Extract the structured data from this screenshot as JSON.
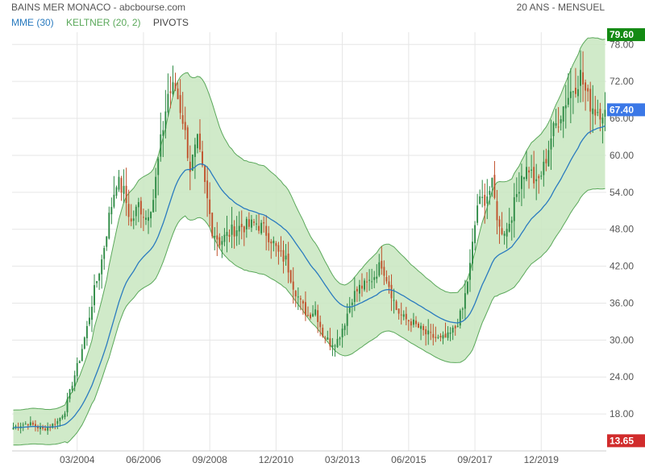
{
  "header": {
    "title": "BAINS MER MONACO - abcbourse.com",
    "period": "20 ANS - MENSUEL"
  },
  "legend": {
    "items": [
      {
        "label": "MME (30)",
        "color": "#2a7bbf"
      },
      {
        "label": "KELTNER (20, 2)",
        "color": "#5aa85a"
      },
      {
        "label": "PIVOTS",
        "color": "#444444"
      }
    ]
  },
  "price_badges": {
    "high": {
      "label": "79.60",
      "value": 79.6,
      "color": "#138a13"
    },
    "last": {
      "label": "67.40",
      "value": 67.4,
      "color": "#3b78e7"
    },
    "low": {
      "label": "13.65",
      "value": 13.65,
      "color": "#d12c2c"
    }
  },
  "colors": {
    "up": "#2e8b45",
    "down": "#c0512b",
    "band_fill": "#c8e6c0",
    "band_line": "#5aa85a",
    "ema": "#2a7bbf",
    "grid": "#e6e6e6",
    "axis_text": "#555555"
  },
  "chart_data": {
    "type": "candlestick",
    "title": "BAINS MER MONACO - abcbourse.com",
    "period": "20 ANS - MENSUEL",
    "interval": "monthly",
    "ylim": [
      12,
      80
    ],
    "y_ticks": [
      {
        "value": 78,
        "label": "78.00"
      },
      {
        "value": 72,
        "label": "72.00"
      },
      {
        "value": 66,
        "label": "66.00"
      },
      {
        "value": 60,
        "label": "60.00"
      },
      {
        "value": 54,
        "label": "54.00"
      },
      {
        "value": 48,
        "label": "48.00"
      },
      {
        "value": 42,
        "label": "42.00"
      },
      {
        "value": 36,
        "label": "36.00"
      },
      {
        "value": 30,
        "label": "30.00"
      },
      {
        "value": 24,
        "label": "24.00"
      },
      {
        "value": 18,
        "label": "18.00"
      }
    ],
    "x_ticks": [
      "03/2004",
      "06/2006",
      "09/2008",
      "12/2010",
      "03/2013",
      "06/2015",
      "09/2017",
      "12/2019"
    ],
    "x_range": [
      "01/2002",
      "03/2022"
    ],
    "grid": true,
    "overlays": [
      "MME (30)",
      "KELTNER (20, 2)",
      "PIVOTS"
    ],
    "closes": [
      [
        "2002-01",
        15.8
      ],
      [
        "2002-04",
        16.2
      ],
      [
        "2002-07",
        16.5
      ],
      [
        "2002-10",
        16.0
      ],
      [
        "2003-01",
        15.5
      ],
      [
        "2003-04",
        16.0
      ],
      [
        "2003-07",
        16.8
      ],
      [
        "2003-10",
        18.5
      ],
      [
        "2004-01",
        23.0
      ],
      [
        "2004-04",
        27.0
      ],
      [
        "2004-07",
        32.0
      ],
      [
        "2004-10",
        38.0
      ],
      [
        "2005-01",
        43.0
      ],
      [
        "2005-04",
        50.0
      ],
      [
        "2005-07",
        56.0
      ],
      [
        "2005-10",
        54.0
      ],
      [
        "2006-01",
        49.0
      ],
      [
        "2006-04",
        52.0
      ],
      [
        "2006-07",
        50.0
      ],
      [
        "2006-10",
        53.0
      ],
      [
        "2007-01",
        62.0
      ],
      [
        "2007-04",
        70.0
      ],
      [
        "2007-07",
        71.0
      ],
      [
        "2007-10",
        66.0
      ],
      [
        "2008-01",
        58.0
      ],
      [
        "2008-04",
        62.0
      ],
      [
        "2008-07",
        55.0
      ],
      [
        "2008-10",
        48.0
      ],
      [
        "2009-01",
        46.0
      ],
      [
        "2009-04",
        47.0
      ],
      [
        "2009-07",
        48.0
      ],
      [
        "2009-10",
        48.5
      ],
      [
        "2010-01",
        48.5
      ],
      [
        "2010-04",
        49.0
      ],
      [
        "2010-07",
        48.0
      ],
      [
        "2010-10",
        46.5
      ],
      [
        "2011-01",
        44.0
      ],
      [
        "2011-04",
        43.0
      ],
      [
        "2011-07",
        39.0
      ],
      [
        "2011-10",
        36.0
      ],
      [
        "2012-01",
        34.0
      ],
      [
        "2012-04",
        35.0
      ],
      [
        "2012-07",
        31.0
      ],
      [
        "2012-10",
        29.5
      ],
      [
        "2013-01",
        30.0
      ],
      [
        "2013-04",
        33.0
      ],
      [
        "2013-07",
        37.0
      ],
      [
        "2013-10",
        38.5
      ],
      [
        "2014-01",
        39.0
      ],
      [
        "2014-04",
        40.5
      ],
      [
        "2014-07",
        42.5
      ],
      [
        "2014-10",
        39.0
      ],
      [
        "2015-01",
        35.0
      ],
      [
        "2015-04",
        33.5
      ],
      [
        "2015-07",
        33.0
      ],
      [
        "2015-10",
        32.0
      ],
      [
        "2016-01",
        31.0
      ],
      [
        "2016-04",
        30.5
      ],
      [
        "2016-07",
        30.0
      ],
      [
        "2016-10",
        30.5
      ],
      [
        "2017-01",
        32.0
      ],
      [
        "2017-04",
        35.0
      ],
      [
        "2017-07",
        42.0
      ],
      [
        "2017-10",
        52.0
      ],
      [
        "2018-01",
        53.0
      ],
      [
        "2018-04",
        55.0
      ],
      [
        "2018-07",
        48.0
      ],
      [
        "2018-10",
        48.0
      ],
      [
        "2019-01",
        52.0
      ],
      [
        "2019-04",
        57.0
      ],
      [
        "2019-07",
        58.0
      ],
      [
        "2019-10",
        55.0
      ],
      [
        "2020-01",
        58.0
      ],
      [
        "2020-04",
        63.0
      ],
      [
        "2020-07",
        66.0
      ],
      [
        "2020-10",
        69.0
      ],
      [
        "2021-01",
        71.0
      ],
      [
        "2021-04",
        73.0
      ],
      [
        "2021-07",
        69.0
      ],
      [
        "2021-10",
        67.4
      ]
    ]
  }
}
